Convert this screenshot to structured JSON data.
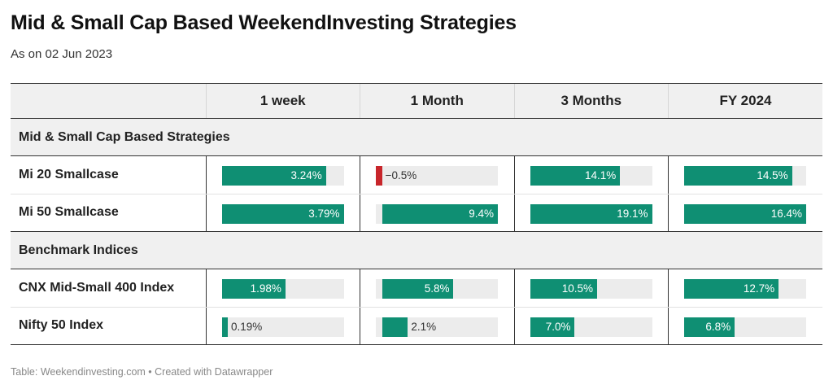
{
  "header": {
    "title": "Mid & Small Cap Based WeekendInvesting Strategies",
    "subtitle": "As on 02 Jun 2023"
  },
  "footer": {
    "source": "Table: Weekendinvesting.com • Created with Datawrapper"
  },
  "colors": {
    "positive": "#0f8f73",
    "negative": "#c8262b",
    "track": "#ececec"
  },
  "chart_data": {
    "type": "table",
    "columns": [
      "1 week",
      "1 Month",
      "3 Months",
      "FY 2024"
    ],
    "column_max": [
      3.79,
      9.4,
      19.1,
      16.4
    ],
    "column_min": [
      0,
      -0.5,
      0,
      0
    ],
    "groups": [
      {
        "name": "Mid & Small Cap Based Strategies",
        "rows": [
          {
            "label": "Mi 20 Smallcase",
            "values": [
              3.24,
              -0.5,
              14.1,
              14.5
            ],
            "display": [
              "3.24%",
              "−0.5%",
              "14.1%",
              "14.5%"
            ]
          },
          {
            "label": "Mi 50 Smallcase",
            "values": [
              3.79,
              9.4,
              19.1,
              16.4
            ],
            "display": [
              "3.79%",
              "9.4%",
              "19.1%",
              "16.4%"
            ]
          }
        ]
      },
      {
        "name": "Benchmark Indices",
        "rows": [
          {
            "label": "CNX Mid-Small 400 Index",
            "values": [
              1.98,
              5.8,
              10.5,
              12.7
            ],
            "display": [
              "1.98%",
              "5.8%",
              "10.5%",
              "12.7%"
            ]
          },
          {
            "label": "Nifty 50 Index",
            "values": [
              0.19,
              2.1,
              7.0,
              6.8
            ],
            "display": [
              "0.19%",
              "2.1%",
              "7.0%",
              "6.8%"
            ]
          }
        ]
      }
    ]
  }
}
